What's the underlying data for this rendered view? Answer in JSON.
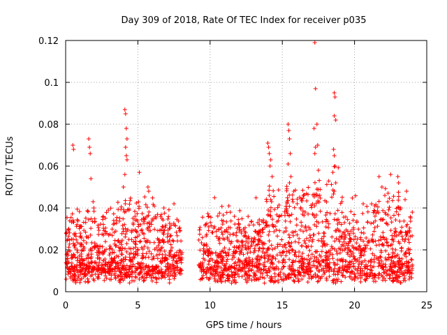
{
  "chart_data": {
    "type": "scatter",
    "title": "Day 309 of 2018, Rate Of TEC Index for receiver p035",
    "xlabel": "GPS time / hours",
    "ylabel": "ROTI / TECUs",
    "xlim": [
      0,
      25
    ],
    "ylim": [
      0,
      0.12
    ],
    "xticks": [
      0,
      5,
      10,
      15,
      20,
      25
    ],
    "xtick_labels": [
      "0",
      "5",
      "10",
      "15",
      "20",
      "25"
    ],
    "yticks": [
      0,
      0.02,
      0.04,
      0.06,
      0.08,
      0.1,
      0.12
    ],
    "ytick_labels": [
      "0",
      "0.02",
      "0.04",
      "0.06",
      "0.08",
      "0.1",
      "0.12"
    ],
    "grid": true,
    "marker": "+",
    "series_color": "#ff0000",
    "data_gap_hours": [
      8.1,
      9.2
    ],
    "series": [
      {
        "name": "ROTI",
        "points": [
          [
            0.5,
            0.07
          ],
          [
            0.55,
            0.068
          ],
          [
            1.6,
            0.073
          ],
          [
            1.65,
            0.069
          ],
          [
            1.7,
            0.066
          ],
          [
            1.75,
            0.054
          ],
          [
            1.9,
            0.043
          ],
          [
            1.95,
            0.04
          ],
          [
            4.1,
            0.087
          ],
          [
            4.15,
            0.085
          ],
          [
            4.2,
            0.078
          ],
          [
            4.25,
            0.073
          ],
          [
            4.15,
            0.069
          ],
          [
            4.2,
            0.065
          ],
          [
            4.25,
            0.063
          ],
          [
            4.1,
            0.056
          ],
          [
            4.0,
            0.05
          ],
          [
            5.1,
            0.057
          ],
          [
            5.7,
            0.05
          ],
          [
            5.75,
            0.048
          ],
          [
            7.5,
            0.042
          ],
          [
            6.8,
            0.04
          ],
          [
            11.3,
            0.041
          ],
          [
            11.4,
            0.038
          ],
          [
            14.0,
            0.071
          ],
          [
            14.05,
            0.069
          ],
          [
            14.1,
            0.066
          ],
          [
            14.2,
            0.063
          ],
          [
            14.15,
            0.06
          ],
          [
            14.3,
            0.055
          ],
          [
            14.1,
            0.046
          ],
          [
            14.2,
            0.044
          ],
          [
            15.4,
            0.08
          ],
          [
            15.45,
            0.077
          ],
          [
            15.5,
            0.073
          ],
          [
            15.55,
            0.066
          ],
          [
            15.4,
            0.061
          ],
          [
            15.6,
            0.055
          ],
          [
            15.5,
            0.052
          ],
          [
            17.25,
            0.119
          ],
          [
            17.3,
            0.097
          ],
          [
            17.2,
            0.078
          ],
          [
            17.4,
            0.08
          ],
          [
            17.45,
            0.07
          ],
          [
            17.3,
            0.069
          ],
          [
            17.25,
            0.066
          ],
          [
            17.5,
            0.058
          ],
          [
            17.4,
            0.049
          ],
          [
            18.6,
            0.095
          ],
          [
            18.65,
            0.093
          ],
          [
            18.6,
            0.084
          ],
          [
            18.7,
            0.082
          ],
          [
            18.55,
            0.068
          ],
          [
            18.6,
            0.065
          ],
          [
            18.65,
            0.06
          ],
          [
            18.5,
            0.057
          ],
          [
            18.7,
            0.052
          ],
          [
            18.6,
            0.048
          ],
          [
            21.7,
            0.055
          ],
          [
            21.9,
            0.05
          ],
          [
            22.1,
            0.046
          ],
          [
            22.3,
            0.043
          ],
          [
            22.5,
            0.056
          ],
          [
            23.0,
            0.055
          ],
          [
            23.05,
            0.052
          ],
          [
            23.6,
            0.048
          ],
          [
            23.5,
            0.044
          ],
          [
            23.2,
            0.04
          ],
          [
            21.4,
            0.041
          ],
          [
            20.6,
            0.042
          ],
          [
            13.3,
            0.033
          ],
          [
            9.9,
            0.031
          ],
          [
            0.2,
            0.029
          ],
          [
            2.6,
            0.036
          ],
          [
            3.5,
            0.034
          ],
          [
            6.2,
            0.036
          ],
          [
            7.9,
            0.029
          ],
          [
            12.0,
            0.032
          ],
          [
            16.4,
            0.037
          ],
          [
            19.3,
            0.033
          ],
          [
            24.0,
            0.038
          ]
        ]
      }
    ]
  }
}
